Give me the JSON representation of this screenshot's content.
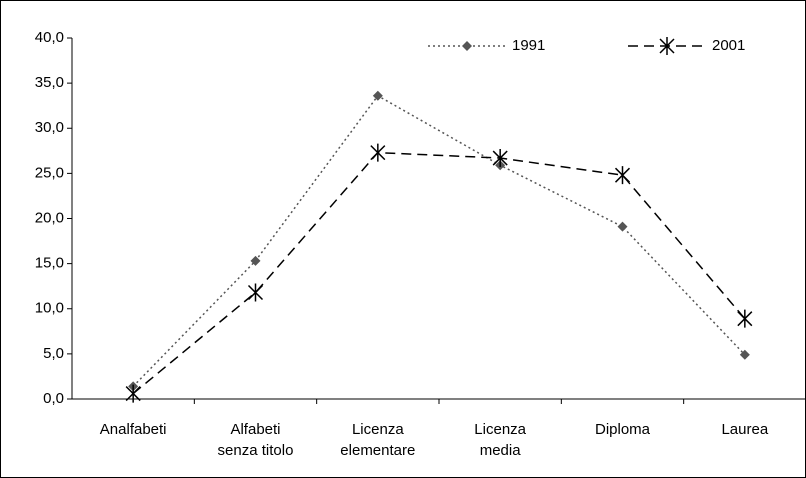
{
  "chart_data": {
    "type": "line",
    "categories": [
      "Analfabeti",
      "Alfabeti\nsenza titolo",
      "Licenza\nelementare",
      "Licenza\nmedia",
      "Diploma",
      "Laurea"
    ],
    "series": [
      {
        "name": "1991",
        "color": "#555555",
        "line_style": "dotted",
        "marker": "diamond",
        "values": [
          1.4,
          15.3,
          33.6,
          25.9,
          19.1,
          4.9
        ]
      },
      {
        "name": "2001",
        "color": "#000000",
        "line_style": "dashed",
        "marker": "asterisk",
        "values": [
          0.6,
          11.8,
          27.3,
          26.7,
          24.8,
          8.9
        ]
      }
    ],
    "ylim": [
      0,
      40
    ],
    "yticks": [
      {
        "value": 0,
        "label": "0,0"
      },
      {
        "value": 5,
        "label": "5,0"
      },
      {
        "value": 10,
        "label": "10,0"
      },
      {
        "value": 15,
        "label": "15,0"
      },
      {
        "value": 20,
        "label": "20,0"
      },
      {
        "value": 25,
        "label": "25,0"
      },
      {
        "value": 30,
        "label": "30,0"
      },
      {
        "value": 35,
        "label": "35,0"
      },
      {
        "value": 40,
        "label": "40,0"
      }
    ],
    "grid": false,
    "legend": "top-right"
  }
}
